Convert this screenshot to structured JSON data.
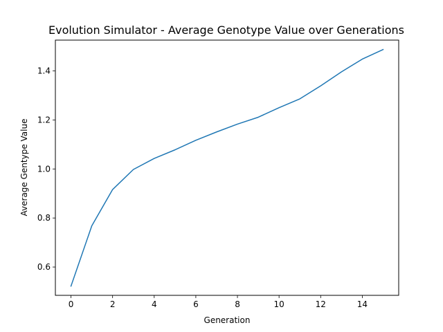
{
  "chart_data": {
    "type": "line",
    "title": "Evolution Simulator - Average Genotype Value over Generations",
    "xlabel": "Generation",
    "ylabel": "Average Gentype Value",
    "xlim": [
      -0.75,
      15.75
    ],
    "ylim": [
      0.4845,
      1.5255
    ],
    "xticks": [
      0,
      2,
      4,
      6,
      8,
      10,
      12,
      14
    ],
    "xtick_labels": [
      "0",
      "2",
      "4",
      "6",
      "8",
      "10",
      "12",
      "14"
    ],
    "yticks": [
      0.6,
      0.8,
      1.0,
      1.2,
      1.4
    ],
    "ytick_labels": [
      "0.6",
      "0.8",
      "1.0",
      "1.2",
      "1.4"
    ],
    "grid": false,
    "series": [
      {
        "color": "#1f77b4",
        "x": [
          0,
          1,
          2,
          3,
          4,
          5,
          6,
          7,
          8,
          9,
          10,
          11,
          12,
          13,
          14,
          15
        ],
        "y": [
          0.522,
          0.768,
          0.916,
          0.998,
          1.043,
          1.078,
          1.117,
          1.151,
          1.183,
          1.211,
          1.25,
          1.286,
          1.339,
          1.396,
          1.448,
          1.487
        ]
      }
    ]
  }
}
